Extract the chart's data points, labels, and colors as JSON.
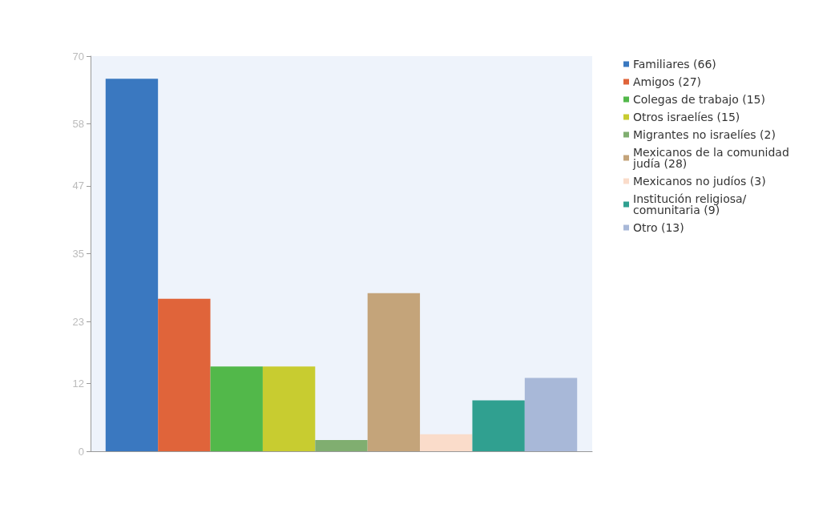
{
  "chart_data": {
    "type": "bar",
    "categories": [
      null
    ],
    "ylim": [
      0,
      70
    ],
    "yticks": [
      0,
      12,
      23,
      35,
      47,
      58,
      70
    ],
    "legend": "top right",
    "series": [
      {
        "name": "Familiares (66)",
        "color": "#3a78c0",
        "values": [
          66
        ]
      },
      {
        "name": "Amigos (27)",
        "color": "#e0643a",
        "values": [
          27
        ]
      },
      {
        "name": "Colegas de trabajo (15)",
        "color": "#52b84a",
        "values": [
          15
        ]
      },
      {
        "name": "Otros israelíes (15)",
        "color": "#c8cc30",
        "values": [
          15
        ]
      },
      {
        "name": "Migrantes no israelíes (2)",
        "color": "#80ae70",
        "values": [
          2
        ]
      },
      {
        "name": "Mexicanos de la comunidad judía (28)",
        "color": "#c4a47a",
        "values": [
          28
        ]
      },
      {
        "name": "Mexicanos no judíos (3)",
        "color": "#fadcca",
        "values": [
          3
        ]
      },
      {
        "name": "Institución religiosa/comunitaria (9)",
        "color": "#30a090",
        "values": [
          9
        ]
      },
      {
        "name": "Otro (13)",
        "color": "#a8b8d8",
        "values": [
          13
        ]
      }
    ]
  }
}
